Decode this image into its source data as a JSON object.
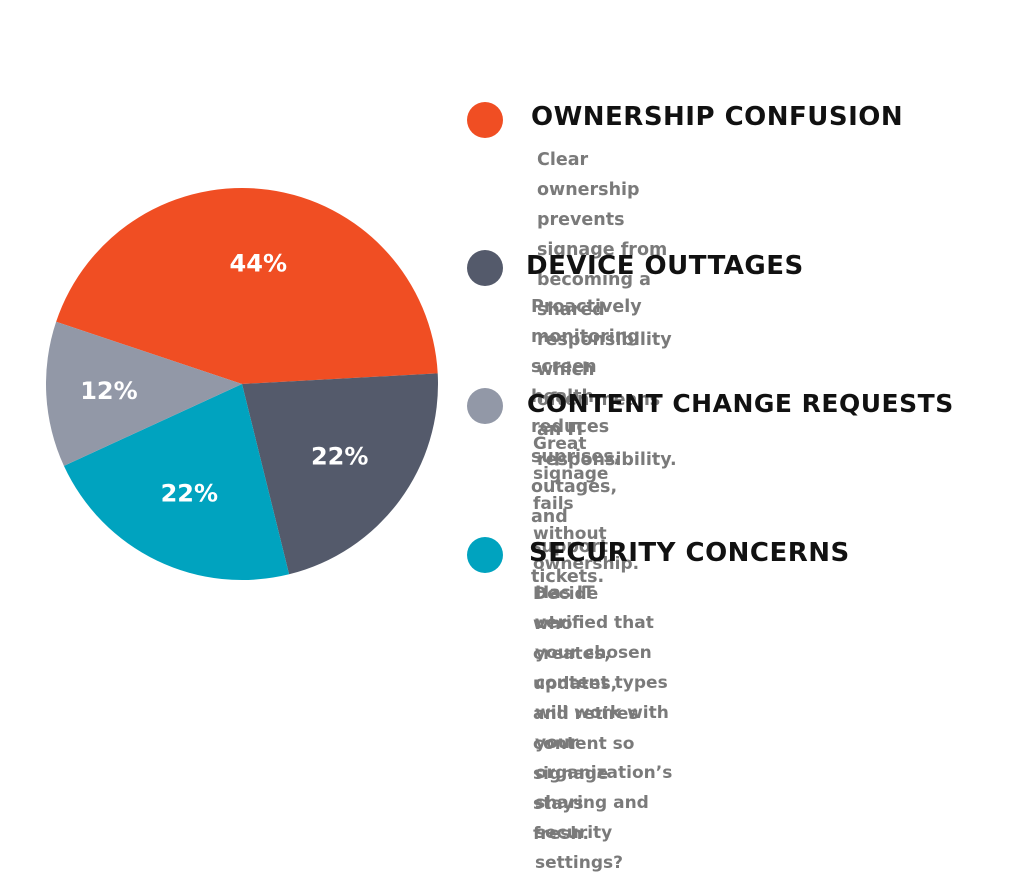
{
  "chart_data": {
    "type": "pie",
    "slices": [
      {
        "label": "OWNERSHIP CONFUSION",
        "value": 44,
        "value_label": "44%",
        "color": "#f04e23"
      },
      {
        "label": "DEVICE OUTTAGES",
        "value": 22,
        "value_label": "22%",
        "color": "#545a6b"
      },
      {
        "label": "SECURITY CONCERNS",
        "value": 22,
        "value_label": "22%",
        "color": "#00a3bf"
      },
      {
        "label": "CONTENT CHANGE REQUESTS",
        "value": 12,
        "value_label": "12%",
        "color": "#9298a7"
      }
    ]
  },
  "legend": [
    {
      "title": "OWNERSHIP CONFUSION",
      "color": "#f04e23",
      "lines": [
        "Clear ownership prevents signage from",
        "becoming a shared responsibility which",
        "often means an IT responsibility."
      ]
    },
    {
      "title": "DEVICE OUTTAGES",
      "color": "#545a6b",
      "lines": [
        "Proactively monitoring screen health",
        "reduces suprises, outages, and support",
        "tickets."
      ]
    },
    {
      "title": "CONTENT CHANGE REQUESTS",
      "color": "#9298a7",
      "lines": [
        "Great signage fails without ownership. Decide",
        "who creates, updates, and retires content so",
        "signage stays fresh."
      ]
    },
    {
      "title": "SECURITY CONCERNS",
      "color": "#00a3bf",
      "lines": [
        "Has IT verified that your chosen content types",
        "will work with your organization’s sharing and",
        "security settings?"
      ]
    }
  ]
}
